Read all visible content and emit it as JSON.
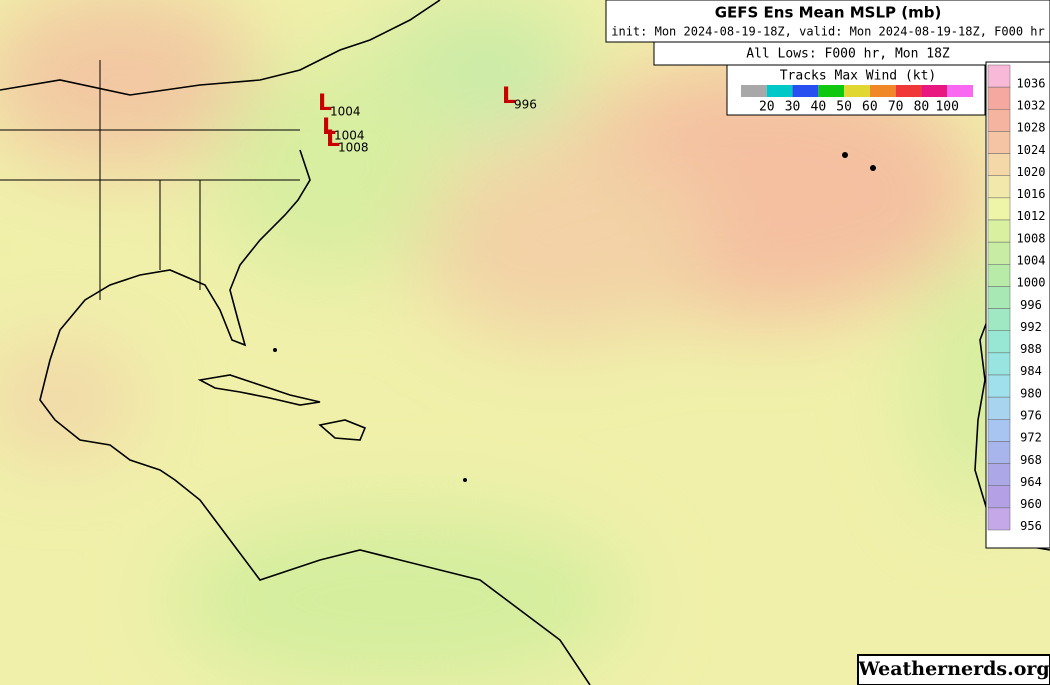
{
  "header": {
    "title": "GEFS Ens Mean MSLP (mb)",
    "subtitle": "init: Mon 2024-08-19-18Z, valid: Mon 2024-08-19-18Z, F000 hr",
    "lows_label": "All Lows: F000 hr, Mon 18Z"
  },
  "wind_legend": {
    "title": "Tracks Max Wind (kt)",
    "colors": [
      "#a8a8a8",
      "#00c8c8",
      "#2850f0",
      "#10c810",
      "#e0d830",
      "#f08828",
      "#f03838",
      "#e81880",
      "#f868f0"
    ],
    "labels": [
      "20",
      "30",
      "40",
      "50",
      "60",
      "70",
      "80",
      "100"
    ]
  },
  "pressure_scale": {
    "labels": [
      "1036",
      "1032",
      "1028",
      "1024",
      "1020",
      "1016",
      "1012",
      "1008",
      "1004",
      "1000",
      "996",
      "992",
      "988",
      "984",
      "980",
      "976",
      "972",
      "968",
      "964",
      "960",
      "956"
    ],
    "colors": [
      "#f8b8d8",
      "#f4a8a0",
      "#f4b4a0",
      "#f4c4a4",
      "#f4d8a8",
      "#f2e8ac",
      "#eef4a8",
      "#d8f0a0",
      "#c8eca4",
      "#b8eaa8",
      "#a8e8b4",
      "#a0e8c4",
      "#98e6d4",
      "#98e4e0",
      "#a0e0ec",
      "#a8d4f0",
      "#a8c4f0",
      "#a8b4ec",
      "#aca8e8",
      "#b4a0e4",
      "#c4a8e8"
    ]
  },
  "lows": [
    {
      "symbol": "L",
      "label": "1004"
    },
    {
      "symbol": "L",
      "label": "1004"
    },
    {
      "symbol": "L",
      "label": "1008"
    },
    {
      "symbol": "L",
      "label": "996"
    }
  ],
  "watermark": "Weathernerds.org"
}
